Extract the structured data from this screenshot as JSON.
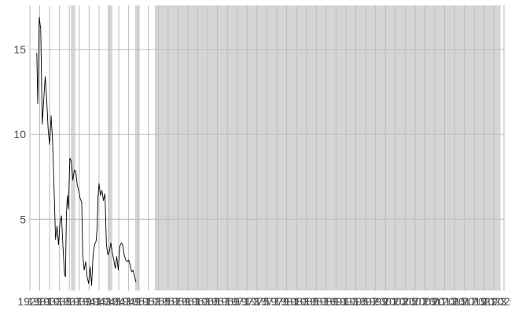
{
  "chart_data": {
    "type": "line",
    "title": "",
    "xlabel": "",
    "ylabel": "",
    "x_range": [
      1929,
      2025
    ],
    "y_range": [
      0.8,
      17.6
    ],
    "grid": true,
    "x_tick_labels": [
      "1929",
      "1931",
      "1933",
      "1935",
      "1937",
      "1939",
      "1941",
      "1943",
      "1945",
      "1947",
      "1949",
      "1951",
      "1953",
      "1955",
      "1957",
      "1959",
      "1961",
      "1963",
      "1965",
      "1967",
      "1969",
      "1971",
      "1973",
      "1975",
      "1977",
      "1979",
      "1981",
      "1983",
      "1985",
      "1987",
      "1989",
      "1991",
      "1993",
      "1995",
      "1997",
      "1999",
      "2001",
      "2003",
      "2005",
      "2007",
      "2009",
      "2011",
      "2013",
      "2015",
      "2017",
      "2019",
      "2021",
      "2023",
      "2025"
    ],
    "y_ticks": [
      5,
      10,
      15
    ],
    "y_tick_labels": [
      "5",
      "10",
      "15"
    ],
    "shaded_periods": [
      {
        "start": 1937.3,
        "end": 1938.2
      },
      {
        "start": 1944.8,
        "end": 1945.7
      },
      {
        "start": 1950.3,
        "end": 1951.2
      },
      {
        "start": 1954.3,
        "end": 2024.3
      }
    ],
    "series": [
      {
        "color": "#000000",
        "points": [
          [
            1930.4,
            14.8
          ],
          [
            1930.6,
            11.8
          ],
          [
            1930.9,
            16.9
          ],
          [
            1931.2,
            16.2
          ],
          [
            1931.5,
            10.6
          ],
          [
            1931.8,
            12.0
          ],
          [
            1932.1,
            13.4
          ],
          [
            1932.4,
            12.1
          ],
          [
            1932.7,
            10.3
          ],
          [
            1933.0,
            9.4
          ],
          [
            1933.3,
            11.1
          ],
          [
            1933.6,
            9.6
          ],
          [
            1933.9,
            6.8
          ],
          [
            1934.2,
            3.8
          ],
          [
            1934.5,
            4.6
          ],
          [
            1934.8,
            3.5
          ],
          [
            1935.1,
            4.8
          ],
          [
            1935.4,
            5.2
          ],
          [
            1935.7,
            3.4
          ],
          [
            1936.0,
            1.8
          ],
          [
            1936.2,
            1.6
          ],
          [
            1936.4,
            5.3
          ],
          [
            1936.6,
            6.4
          ],
          [
            1936.8,
            5.6
          ],
          [
            1937.1,
            8.6
          ],
          [
            1937.4,
            8.4
          ],
          [
            1937.7,
            7.3
          ],
          [
            1938.0,
            7.9
          ],
          [
            1938.3,
            7.8
          ],
          [
            1938.6,
            7.0
          ],
          [
            1938.9,
            6.7
          ],
          [
            1939.2,
            6.2
          ],
          [
            1939.5,
            6.0
          ],
          [
            1939.7,
            2.9
          ],
          [
            1940.0,
            2.0
          ],
          [
            1940.3,
            2.5
          ],
          [
            1940.6,
            1.6
          ],
          [
            1940.9,
            1.2
          ],
          [
            1941.2,
            2.2
          ],
          [
            1941.5,
            1.1
          ],
          [
            1941.8,
            2.9
          ],
          [
            1942.1,
            3.5
          ],
          [
            1942.4,
            3.7
          ],
          [
            1942.6,
            4.4
          ],
          [
            1942.8,
            6.3
          ],
          [
            1943.0,
            7.1
          ],
          [
            1943.3,
            6.4
          ],
          [
            1943.6,
            6.7
          ],
          [
            1943.9,
            6.1
          ],
          [
            1944.2,
            6.5
          ],
          [
            1944.5,
            3.5
          ],
          [
            1944.8,
            2.9
          ],
          [
            1945.1,
            3.1
          ],
          [
            1945.4,
            3.6
          ],
          [
            1945.7,
            3.0
          ],
          [
            1946.0,
            2.6
          ],
          [
            1946.3,
            2.1
          ],
          [
            1946.6,
            2.8
          ],
          [
            1946.9,
            2.0
          ],
          [
            1947.2,
            3.4
          ],
          [
            1947.5,
            3.6
          ],
          [
            1947.8,
            3.5
          ],
          [
            1948.1,
            2.9
          ],
          [
            1948.4,
            2.6
          ],
          [
            1948.7,
            2.5
          ],
          [
            1949.0,
            2.6
          ],
          [
            1949.3,
            2.3
          ],
          [
            1949.6,
            1.9
          ],
          [
            1949.9,
            2.0
          ],
          [
            1950.2,
            1.6
          ],
          [
            1950.5,
            1.3
          ]
        ]
      }
    ]
  }
}
